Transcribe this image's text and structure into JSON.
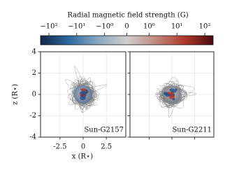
{
  "chart_data": [
    {
      "type": "colorbar",
      "title": "Radial magnetic field strength (G)",
      "scale": "symlog",
      "linthresh": 1,
      "linscale": 0.8,
      "xlim": [
        -200,
        200
      ],
      "xticks": [
        {
          "value": -100,
          "label": "−10²"
        },
        {
          "value": -10,
          "label": "−10¹"
        },
        {
          "value": -1,
          "label": "−10⁰"
        },
        0,
        {
          "value": 1,
          "label": "10⁰"
        },
        {
          "value": 10,
          "label": "10¹"
        },
        {
          "value": 100,
          "label": "10²"
        }
      ],
      "colors": [
        "#16244a",
        "#2e6aa0",
        "#8aa7c0",
        "#cfcfcf",
        "#c08a80",
        "#b03a2e",
        "#4a0810"
      ]
    },
    {
      "type": "panel",
      "annotation": "Sun-G2157",
      "xlabel": "x (R⋆)",
      "ylabel": "z (R⋆)",
      "xlim": [
        -4.6,
        4.6
      ],
      "ylim": [
        -4,
        4
      ],
      "xticks": [
        -2.5,
        0,
        2.5
      ],
      "yticks": [
        -4,
        -2,
        0,
        2,
        4
      ],
      "grid": true
    },
    {
      "type": "panel",
      "annotation": "Sun-G2211",
      "xlim": [
        -4.6,
        4.6
      ],
      "ylim": [
        -4,
        4
      ],
      "xticks": [
        -2.5,
        0,
        2.5
      ],
      "yticks": [
        -4,
        -2,
        0,
        2,
        4
      ],
      "grid": true
    }
  ]
}
